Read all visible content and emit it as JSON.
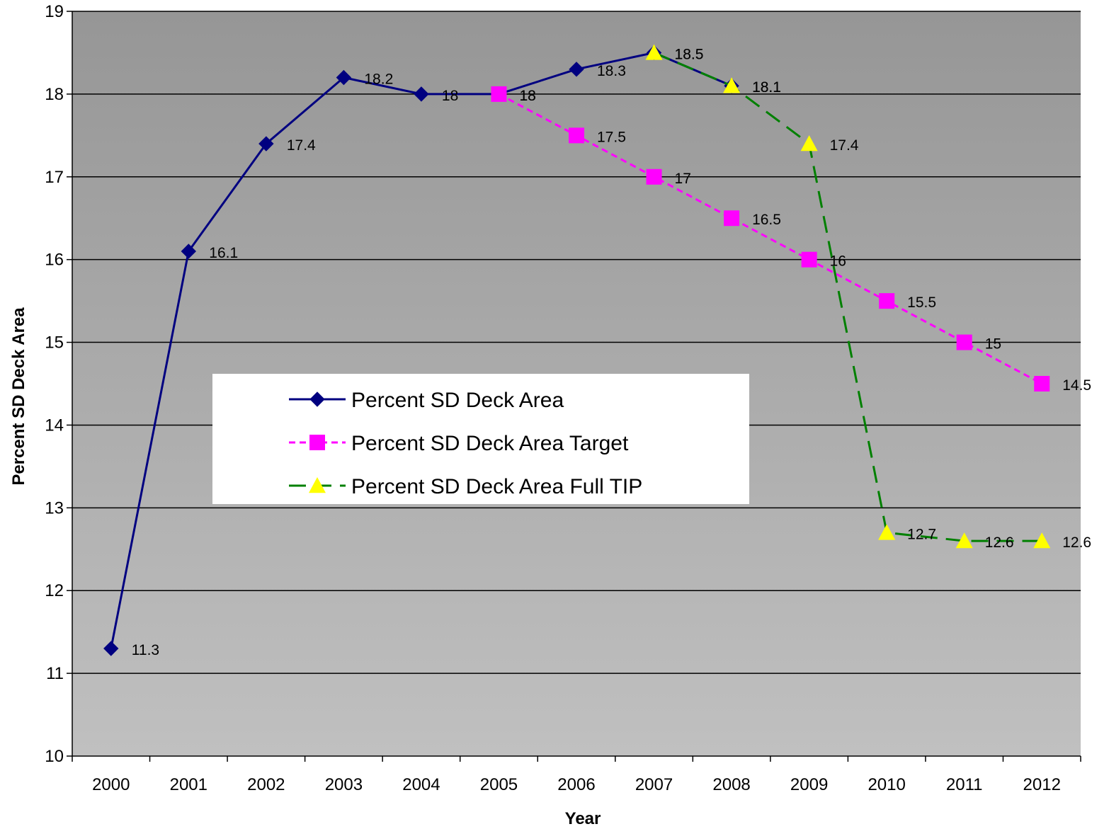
{
  "chart_data": {
    "type": "line",
    "title": "",
    "xlabel": "Year",
    "ylabel": "Percent SD Deck Area",
    "categories": [
      "2000",
      "2001",
      "2002",
      "2003",
      "2004",
      "2005",
      "2006",
      "2007",
      "2008",
      "2009",
      "2010",
      "2011",
      "2012"
    ],
    "ylim": [
      10,
      19
    ],
    "yticks": [
      10,
      11,
      12,
      13,
      14,
      15,
      16,
      17,
      18,
      19
    ],
    "grid": true,
    "legend_position": "center-left",
    "series": [
      {
        "name": "Percent SD Deck Area",
        "values": [
          11.3,
          16.1,
          17.4,
          18.2,
          18,
          18,
          18.3,
          18.5,
          18.1,
          null,
          null,
          null,
          null
        ],
        "color": "#000080",
        "marker": "diamond",
        "line": "solid"
      },
      {
        "name": "Percent SD Deck Area Target",
        "values": [
          null,
          null,
          null,
          null,
          null,
          18,
          17.5,
          17,
          16.5,
          16,
          15.5,
          15,
          14.5
        ],
        "color": "#FF00FF",
        "marker_color": "#FF00FF",
        "marker": "square",
        "line": "dashed-short"
      },
      {
        "name": "Percent SD Deck Area Full TIP",
        "values": [
          null,
          null,
          null,
          null,
          null,
          null,
          null,
          18.5,
          18.1,
          17.4,
          12.7,
          12.6,
          12.6
        ],
        "color": "#008000",
        "marker_color": "#FFFF00",
        "marker": "triangle",
        "line": "dashed-long"
      }
    ],
    "plot_colors": {
      "background_top": "#969696",
      "background_bottom": "#C0C0C0",
      "gridline": "#000000"
    }
  }
}
